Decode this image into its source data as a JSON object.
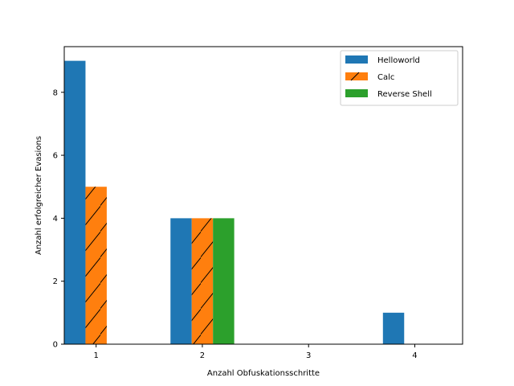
{
  "chart_data": {
    "type": "bar",
    "title": "",
    "xlabel": "Anzahl Obfuskationsschritte",
    "ylabel": "Anzahl erfolgreicher Evasions",
    "categories": [
      "1",
      "2",
      "3",
      "4"
    ],
    "yticks": [
      "0",
      "2",
      "4",
      "6",
      "8"
    ],
    "ylim": [
      0,
      9.45
    ],
    "xlim": [
      0.7,
      4.45
    ],
    "grid": false,
    "legend_position": "top-right",
    "series": [
      {
        "name": "Helloworld",
        "values": [
          9,
          4,
          0,
          1
        ],
        "color": "#1f77b4",
        "hatch": false
      },
      {
        "name": "Calc",
        "values": [
          5,
          4,
          0,
          0
        ],
        "color": "#ff7f0e",
        "hatch": true
      },
      {
        "name": "Reverse Shell",
        "values": [
          0,
          4,
          0,
          0
        ],
        "color": "#2ca02c",
        "hatch": false
      }
    ]
  }
}
